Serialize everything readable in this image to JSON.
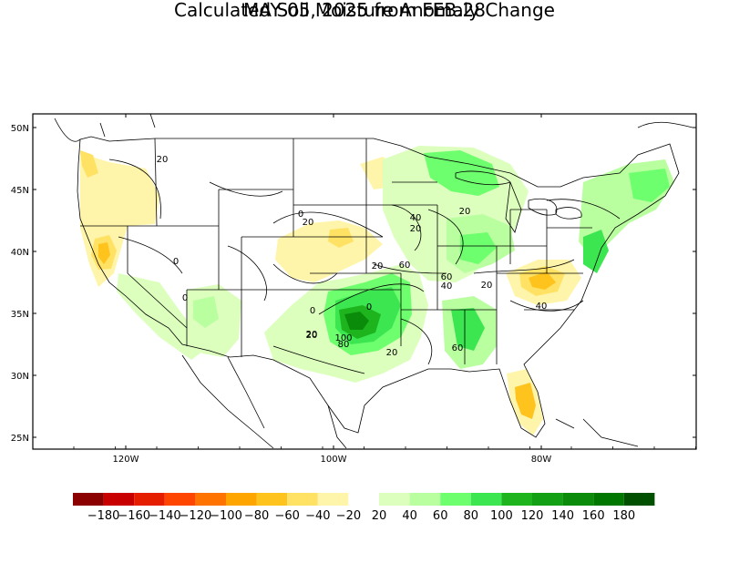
{
  "title": {
    "line1": "Calculated Soil Moisture Anomaly Change",
    "line2": "MAY 05, 2025 from FEB.28"
  },
  "map": {
    "lat_ticks": [
      "50N",
      "45N",
      "40N",
      "35N",
      "30N",
      "25N"
    ],
    "lon_ticks": [
      "120W",
      "100W",
      "80W"
    ]
  },
  "colorbar": {
    "colors": [
      "#8b0000",
      "#c80000",
      "#e61e00",
      "#ff4600",
      "#ff7300",
      "#ffa500",
      "#ffc31e",
      "#ffe164",
      "#fff5aa",
      "#ffffff",
      "#dcffbe",
      "#b9ffa0",
      "#6eff6e",
      "#3ce650",
      "#1eb41e",
      "#14a014",
      "#0a8c0a",
      "#007800",
      "#005000"
    ],
    "labels": [
      "−180",
      "−160",
      "−140",
      "−120",
      "−100",
      "−80",
      "−60",
      "−40",
      "−20",
      "20",
      "40",
      "60",
      "80",
      "100",
      "120",
      "140",
      "160",
      "180"
    ]
  },
  "contour_labels": [
    "20",
    "0",
    "20",
    "40",
    "20",
    "20",
    "60",
    "60",
    "40",
    "20",
    "20",
    "40",
    "0",
    "20",
    "100",
    "80",
    "20",
    "60",
    "0",
    "0",
    "0",
    "20"
  ]
}
